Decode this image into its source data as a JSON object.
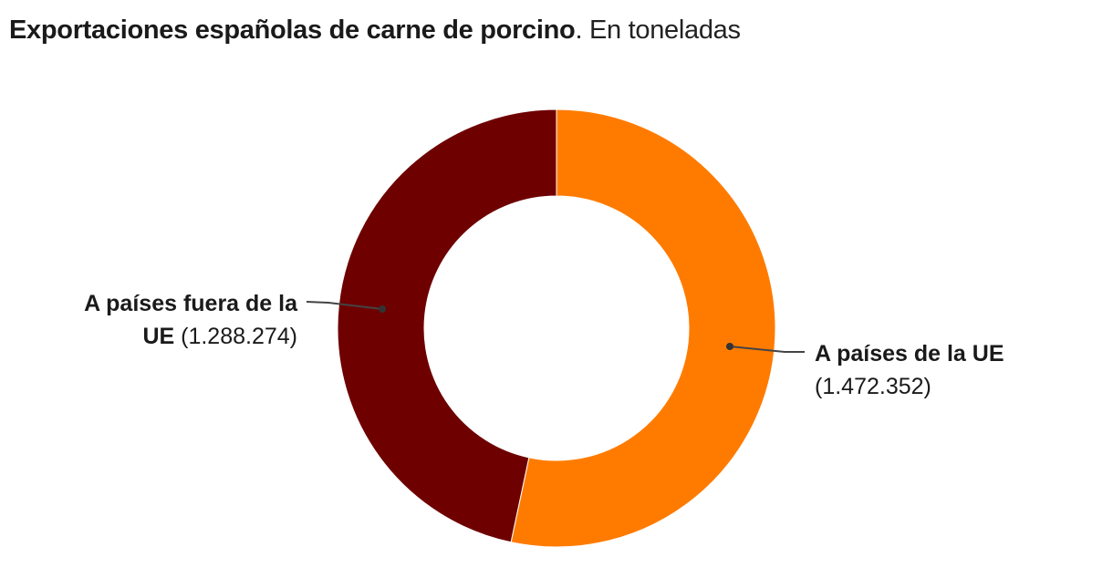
{
  "title": {
    "bold": "Exportaciones españolas de carne de porcino",
    "separator": ".",
    "light": " En toneladas"
  },
  "labels": {
    "fuera_ue": {
      "line1": "A países fuera de la",
      "line2_bold": "UE",
      "value": " (1.288.274)"
    },
    "ue": {
      "line1": "A países de la UE",
      "value": "(1.472.352)"
    }
  },
  "colors": {
    "ue": "#FF7B00",
    "fuera_ue": "#6E0000",
    "leader": "#444444"
  },
  "chart_data": {
    "type": "pie",
    "subtype": "donut",
    "title": "Exportaciones españolas de carne de porcino. En toneladas",
    "categories": [
      "A países de la UE",
      "A países fuera de la UE"
    ],
    "values": [
      1472352,
      1288274
    ],
    "value_labels": [
      "1.472.352",
      "1.288.274"
    ],
    "colors": [
      "#FF7B00",
      "#6E0000"
    ],
    "start_angle_deg": 0,
    "direction": "clockwise",
    "legend": "direct labels with leader lines"
  }
}
